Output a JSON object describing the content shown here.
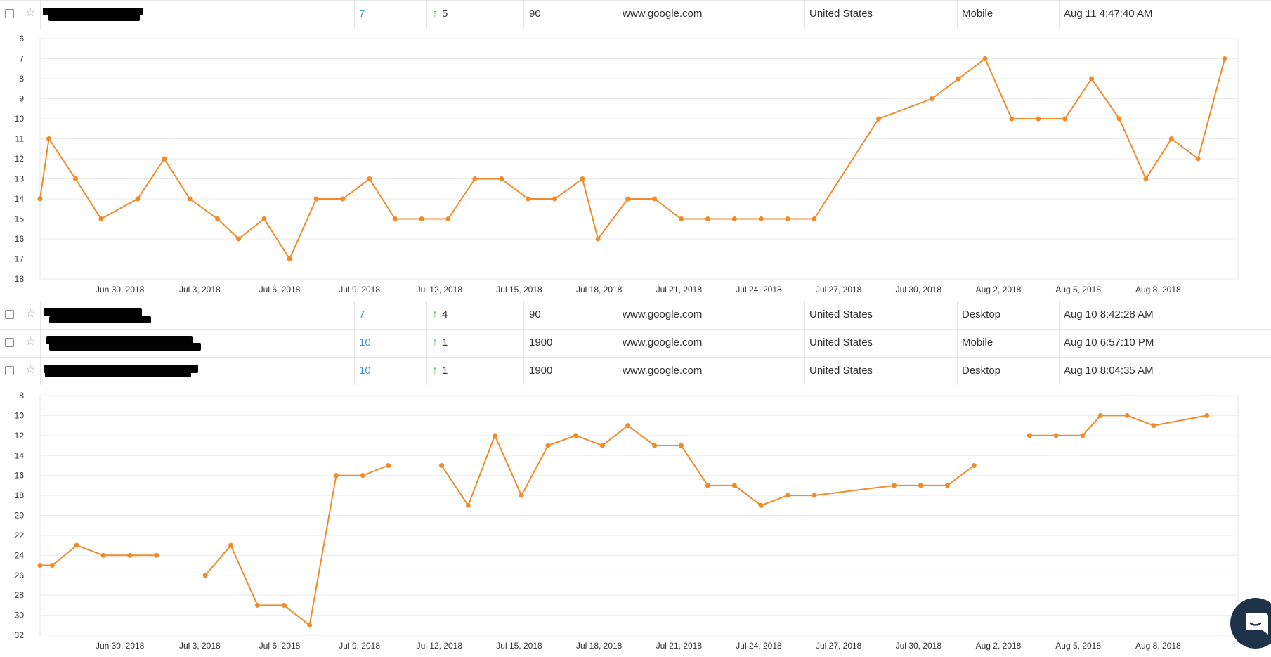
{
  "rows": [
    {
      "rank": "7",
      "change": "5",
      "volume": "90",
      "engine": "www.google.com",
      "country": "United States",
      "device": "Mobile",
      "updated": "Aug 11 4:47:40 AM"
    },
    {
      "rank": "7",
      "change": "4",
      "volume": "90",
      "engine": "www.google.com",
      "country": "United States",
      "device": "Desktop",
      "updated": "Aug 10 8:42:28 AM"
    },
    {
      "rank": "10",
      "change": "1",
      "volume": "1900",
      "engine": "www.google.com",
      "country": "United States",
      "device": "Mobile",
      "updated": "Aug 10 6:57:10 PM"
    },
    {
      "rank": "10",
      "change": "1",
      "volume": "1900",
      "engine": "www.google.com",
      "country": "United States",
      "device": "Desktop",
      "updated": "Aug 10 8:04:35 AM"
    }
  ],
  "icons": {
    "checkbox": "checkbox-icon",
    "star": "star-icon",
    "arrow_up": "arrow-up-icon",
    "chat": "chat-icon"
  },
  "colors": {
    "line": "#f08a2a",
    "rank_link": "#3a9ad9",
    "arrow_up": "#5cb85c",
    "grid": "#ebebeb",
    "chat_button": "#1f3348"
  },
  "chart_data": [
    {
      "type": "line",
      "title": "",
      "xlabel": "",
      "ylabel": "",
      "y_inverted": true,
      "ylim": [
        6,
        18
      ],
      "yticks": [
        6,
        7,
        8,
        9,
        10,
        11,
        12,
        13,
        14,
        15,
        16,
        17,
        18
      ],
      "xlim": [
        "2018-06-27",
        "2018-08-11"
      ],
      "xtick_labels": [
        "Jun 30, 2018",
        "Jul 3, 2018",
        "Jul 6, 2018",
        "Jul 9, 2018",
        "Jul 12, 2018",
        "Jul 15, 2018",
        "Jul 18, 2018",
        "Jul 21, 2018",
        "Jul 24, 2018",
        "Jul 27, 2018",
        "Jul 30, 2018",
        "Aug 2, 2018",
        "Aug 5, 2018",
        "Aug 8, 2018"
      ],
      "xtick_dates": [
        "2018-06-30",
        "2018-07-03",
        "2018-07-06",
        "2018-07-09",
        "2018-07-12",
        "2018-07-15",
        "2018-07-18",
        "2018-07-21",
        "2018-07-24",
        "2018-07-27",
        "2018-07-30",
        "2018-08-02",
        "2018-08-05",
        "2018-08-08"
      ],
      "grid": true,
      "series": [
        {
          "points": [
            [
              "2018-06-27 00:00",
              14
            ],
            [
              "2018-06-27 08:00",
              11
            ],
            [
              "2018-06-28 08:00",
              13
            ],
            [
              "2018-06-29 07:00",
              15
            ],
            [
              "2018-06-30 16:00",
              14
            ],
            [
              "2018-07-01 16:00",
              12
            ],
            [
              "2018-07-02 15:00",
              14
            ],
            [
              "2018-07-03 16:00",
              15
            ],
            [
              "2018-07-04 11:00",
              16
            ],
            [
              "2018-07-05 10:00",
              15
            ],
            [
              "2018-07-06 09:00",
              17
            ],
            [
              "2018-07-07 09:00",
              14
            ],
            [
              "2018-07-08 09:00",
              14
            ],
            [
              "2018-07-09 09:00",
              13
            ],
            [
              "2018-07-10 08:00",
              15
            ],
            [
              "2018-07-11 08:00",
              15
            ],
            [
              "2018-07-12 08:00",
              15
            ],
            [
              "2018-07-13 08:00",
              13
            ],
            [
              "2018-07-14 08:00",
              13
            ],
            [
              "2018-07-15 08:00",
              14
            ],
            [
              "2018-07-16 08:00",
              14
            ],
            [
              "2018-07-17 09:00",
              13
            ],
            [
              "2018-07-17 23:00",
              16
            ],
            [
              "2018-07-19 02:00",
              14
            ],
            [
              "2018-07-20 02:00",
              14
            ],
            [
              "2018-07-21 02:00",
              15
            ],
            [
              "2018-07-22 02:00",
              15
            ],
            [
              "2018-07-23 02:00",
              15
            ],
            [
              "2018-07-24 02:00",
              15
            ],
            [
              "2018-07-25 02:00",
              15
            ],
            [
              "2018-07-26 02:00",
              15
            ],
            [
              "2018-07-28 12:00",
              10
            ],
            [
              "2018-07-30 12:00",
              9
            ],
            [
              "2018-07-31 12:00",
              8
            ],
            [
              "2018-08-01 12:00",
              7
            ],
            [
              "2018-08-02 12:00",
              10
            ],
            [
              "2018-08-03 12:00",
              10
            ],
            [
              "2018-08-04 12:00",
              10
            ],
            [
              "2018-08-05 12:00",
              8
            ],
            [
              "2018-08-06 13:00",
              10
            ],
            [
              "2018-08-07 13:00",
              13
            ],
            [
              "2018-08-08 12:00",
              11
            ],
            [
              "2018-08-09 12:00",
              12
            ],
            [
              "2018-08-10 12:00",
              7
            ]
          ]
        }
      ]
    },
    {
      "type": "line",
      "title": "",
      "xlabel": "",
      "ylabel": "",
      "y_inverted": true,
      "ylim": [
        8,
        32
      ],
      "yticks": [
        8,
        10,
        12,
        14,
        16,
        18,
        20,
        22,
        24,
        26,
        28,
        30,
        32
      ],
      "xlim": [
        "2018-06-27",
        "2018-08-11"
      ],
      "xtick_labels": [
        "Jun 30, 2018",
        "Jul 3, 2018",
        "Jul 6, 2018",
        "Jul 9, 2018",
        "Jul 12, 2018",
        "Jul 15, 2018",
        "Jul 18, 2018",
        "Jul 21, 2018",
        "Jul 24, 2018",
        "Jul 27, 2018",
        "Jul 30, 2018",
        "Aug 2, 2018",
        "Aug 5, 2018",
        "Aug 8, 2018"
      ],
      "xtick_dates": [
        "2018-06-30",
        "2018-07-03",
        "2018-07-06",
        "2018-07-09",
        "2018-07-12",
        "2018-07-15",
        "2018-07-18",
        "2018-07-21",
        "2018-07-24",
        "2018-07-27",
        "2018-07-30",
        "2018-08-02",
        "2018-08-05",
        "2018-08-08"
      ],
      "grid": true,
      "series": [
        {
          "segments": [
            [
              [
                "2018-06-27 00:00",
                25
              ],
              [
                "2018-06-27 11:00",
                25
              ],
              [
                "2018-06-28 09:00",
                23
              ],
              [
                "2018-06-29 09:00",
                24
              ],
              [
                "2018-06-30 09:00",
                24
              ],
              [
                "2018-07-01 09:00",
                24
              ]
            ],
            [
              [
                "2018-07-03 05:00",
                26
              ],
              [
                "2018-07-04 04:00",
                23
              ],
              [
                "2018-07-05 04:00",
                29
              ],
              [
                "2018-07-06 04:00",
                29
              ],
              [
                "2018-07-07 03:00",
                31
              ],
              [
                "2018-07-08 03:00",
                16
              ],
              [
                "2018-07-09 03:00",
                16
              ],
              [
                "2018-07-10 02:00",
                15
              ]
            ],
            [
              [
                "2018-07-12 02:00",
                15
              ],
              [
                "2018-07-13 02:00",
                19
              ],
              [
                "2018-07-14 02:00",
                12
              ],
              [
                "2018-07-15 02:00",
                18
              ],
              [
                "2018-07-16 02:00",
                13
              ],
              [
                "2018-07-17 03:00",
                12
              ],
              [
                "2018-07-18 03:00",
                13
              ],
              [
                "2018-07-19 02:00",
                11
              ],
              [
                "2018-07-20 02:00",
                13
              ],
              [
                "2018-07-21 02:00",
                13
              ],
              [
                "2018-07-22 02:00",
                17
              ],
              [
                "2018-07-23 02:00",
                17
              ],
              [
                "2018-07-24 02:00",
                19
              ],
              [
                "2018-07-25 02:00",
                18
              ],
              [
                "2018-07-26 02:00",
                18
              ],
              [
                "2018-07-29 02:00",
                17
              ],
              [
                "2018-07-30 02:00",
                17
              ],
              [
                "2018-07-31 02:00",
                17
              ],
              [
                "2018-08-01 02:00",
                15
              ]
            ],
            [
              [
                "2018-08-03 04:00",
                12
              ],
              [
                "2018-08-04 04:00",
                12
              ],
              [
                "2018-08-05 04:00",
                12
              ],
              [
                "2018-08-05 20:00",
                10
              ],
              [
                "2018-08-06 20:00",
                10
              ],
              [
                "2018-08-07 20:00",
                11
              ],
              [
                "2018-08-09 20:00",
                10
              ]
            ]
          ]
        }
      ]
    }
  ]
}
